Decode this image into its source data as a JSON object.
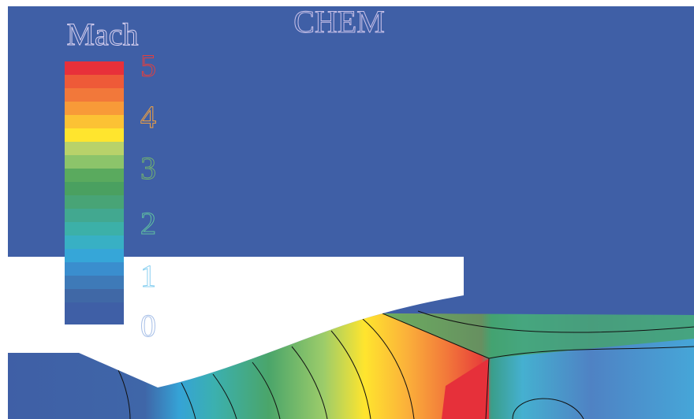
{
  "title": "CHEM",
  "colorbar": {
    "label": "Mach",
    "ticks": [
      "0",
      "1",
      "2",
      "3",
      "4",
      "5"
    ]
  }
}
